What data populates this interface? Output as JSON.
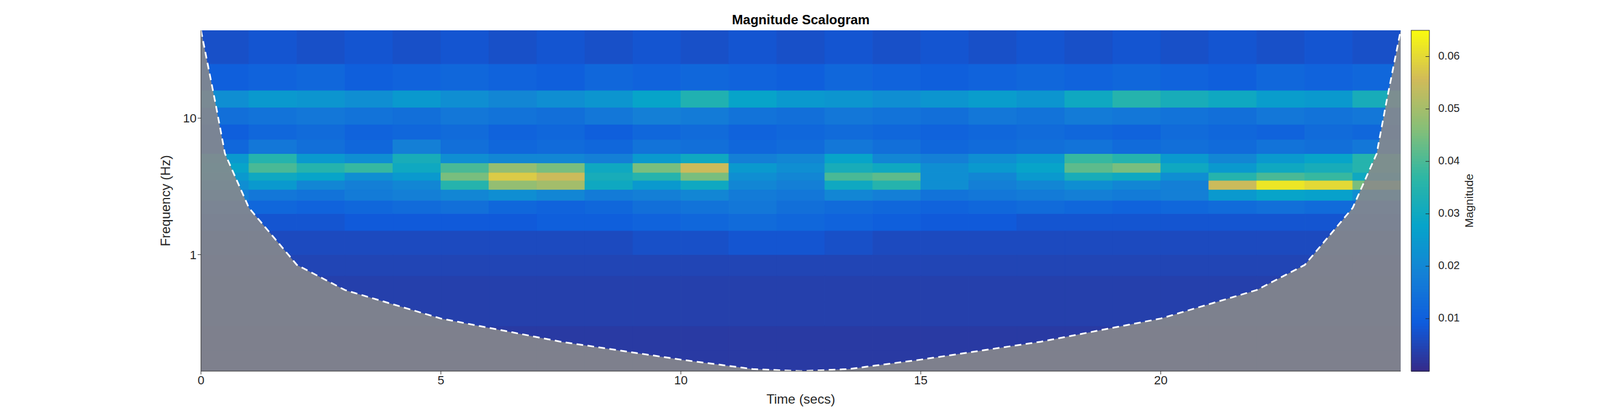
{
  "chart_data": {
    "type": "heatmap",
    "title": "Magnitude Scalogram",
    "x_label": "Time (secs)",
    "y_label": "Frequency (Hz)",
    "log": "y",
    "xlim": [
      0,
      25
    ],
    "xticks": [
      0,
      5,
      10,
      15,
      20
    ],
    "ylim": [
      0.14,
      44
    ],
    "yticks": [
      1,
      10
    ],
    "time_bins": [
      0,
      1,
      2,
      3,
      4,
      5,
      6,
      7,
      8,
      9,
      10,
      11,
      12,
      13,
      14,
      15,
      16,
      17,
      18,
      19,
      20,
      21,
      22,
      23,
      24,
      25
    ],
    "frequency_bins": [
      0.14,
      0.2,
      0.3,
      0.45,
      0.7,
      1,
      1.5,
      2,
      2.5,
      3,
      3.5,
      4,
      4.7,
      5.5,
      7,
      9,
      12,
      16,
      25,
      44
    ],
    "cells": [
      [
        0.003,
        0.003,
        0.003,
        0.003,
        0.003,
        0.003,
        0.003,
        0.003,
        0.003,
        0.003,
        0.003,
        0.003,
        0.003,
        0.003,
        0.003,
        0.003,
        0.003,
        0.003,
        0.003,
        0.003,
        0.003,
        0.003,
        0.003,
        0.003,
        0.003
      ],
      [
        0.003,
        0.003,
        0.003,
        0.003,
        0.003,
        0.003,
        0.003,
        0.003,
        0.003,
        0.003,
        0.003,
        0.003,
        0.003,
        0.003,
        0.003,
        0.003,
        0.003,
        0.003,
        0.003,
        0.003,
        0.003,
        0.003,
        0.003,
        0.003,
        0.003
      ],
      [
        0.004,
        0.004,
        0.004,
        0.004,
        0.004,
        0.004,
        0.004,
        0.004,
        0.004,
        0.004,
        0.004,
        0.004,
        0.004,
        0.004,
        0.004,
        0.004,
        0.004,
        0.004,
        0.004,
        0.004,
        0.004,
        0.004,
        0.004,
        0.004,
        0.004
      ],
      [
        0.004,
        0.004,
        0.004,
        0.004,
        0.004,
        0.004,
        0.004,
        0.004,
        0.004,
        0.004,
        0.004,
        0.004,
        0.004,
        0.004,
        0.004,
        0.004,
        0.004,
        0.004,
        0.004,
        0.004,
        0.004,
        0.004,
        0.004,
        0.004,
        0.004
      ],
      [
        0.005,
        0.005,
        0.005,
        0.005,
        0.005,
        0.005,
        0.005,
        0.005,
        0.005,
        0.005,
        0.005,
        0.005,
        0.005,
        0.005,
        0.005,
        0.005,
        0.005,
        0.005,
        0.005,
        0.005,
        0.005,
        0.005,
        0.005,
        0.005,
        0.005
      ],
      [
        0.006,
        0.006,
        0.006,
        0.006,
        0.006,
        0.006,
        0.006,
        0.006,
        0.006,
        0.007,
        0.007,
        0.008,
        0.008,
        0.007,
        0.006,
        0.006,
        0.006,
        0.006,
        0.006,
        0.006,
        0.006,
        0.006,
        0.006,
        0.006,
        0.006
      ],
      [
        0.008,
        0.008,
        0.008,
        0.009,
        0.009,
        0.009,
        0.009,
        0.01,
        0.01,
        0.011,
        0.012,
        0.013,
        0.012,
        0.011,
        0.01,
        0.009,
        0.009,
        0.008,
        0.008,
        0.008,
        0.008,
        0.008,
        0.008,
        0.008,
        0.008
      ],
      [
        0.012,
        0.012,
        0.011,
        0.012,
        0.013,
        0.014,
        0.012,
        0.011,
        0.012,
        0.014,
        0.015,
        0.016,
        0.014,
        0.013,
        0.012,
        0.011,
        0.012,
        0.013,
        0.012,
        0.011,
        0.012,
        0.013,
        0.014,
        0.013,
        0.012
      ],
      [
        0.018,
        0.016,
        0.015,
        0.017,
        0.018,
        0.02,
        0.022,
        0.02,
        0.017,
        0.018,
        0.02,
        0.017,
        0.016,
        0.02,
        0.018,
        0.015,
        0.016,
        0.017,
        0.018,
        0.017,
        0.018,
        0.025,
        0.028,
        0.027,
        0.022
      ],
      [
        0.022,
        0.025,
        0.02,
        0.018,
        0.02,
        0.035,
        0.048,
        0.05,
        0.03,
        0.025,
        0.03,
        0.02,
        0.018,
        0.03,
        0.035,
        0.022,
        0.018,
        0.02,
        0.022,
        0.02,
        0.018,
        0.055,
        0.062,
        0.06,
        0.045
      ],
      [
        0.025,
        0.03,
        0.028,
        0.022,
        0.025,
        0.045,
        0.058,
        0.055,
        0.032,
        0.035,
        0.045,
        0.022,
        0.02,
        0.04,
        0.042,
        0.022,
        0.02,
        0.025,
        0.032,
        0.03,
        0.022,
        0.035,
        0.04,
        0.038,
        0.03
      ],
      [
        0.028,
        0.04,
        0.035,
        0.038,
        0.03,
        0.04,
        0.048,
        0.045,
        0.03,
        0.045,
        0.055,
        0.025,
        0.022,
        0.032,
        0.03,
        0.022,
        0.025,
        0.028,
        0.042,
        0.045,
        0.03,
        0.025,
        0.03,
        0.032,
        0.035
      ],
      [
        0.025,
        0.035,
        0.025,
        0.022,
        0.032,
        0.022,
        0.02,
        0.02,
        0.018,
        0.025,
        0.03,
        0.018,
        0.02,
        0.028,
        0.02,
        0.018,
        0.022,
        0.025,
        0.038,
        0.035,
        0.025,
        0.02,
        0.025,
        0.028,
        0.035
      ],
      [
        0.012,
        0.016,
        0.014,
        0.012,
        0.018,
        0.014,
        0.012,
        0.013,
        0.012,
        0.015,
        0.014,
        0.012,
        0.013,
        0.016,
        0.014,
        0.012,
        0.013,
        0.014,
        0.015,
        0.013,
        0.014,
        0.013,
        0.015,
        0.014,
        0.016
      ],
      [
        0.01,
        0.012,
        0.013,
        0.011,
        0.012,
        0.013,
        0.011,
        0.012,
        0.01,
        0.012,
        0.013,
        0.011,
        0.012,
        0.013,
        0.012,
        0.011,
        0.012,
        0.013,
        0.012,
        0.011,
        0.013,
        0.012,
        0.011,
        0.013,
        0.012
      ],
      [
        0.014,
        0.015,
        0.016,
        0.015,
        0.014,
        0.016,
        0.015,
        0.014,
        0.016,
        0.018,
        0.017,
        0.015,
        0.014,
        0.016,
        0.015,
        0.014,
        0.016,
        0.015,
        0.017,
        0.016,
        0.015,
        0.014,
        0.016,
        0.015,
        0.016
      ],
      [
        0.022,
        0.025,
        0.024,
        0.022,
        0.025,
        0.022,
        0.02,
        0.022,
        0.024,
        0.028,
        0.034,
        0.028,
        0.025,
        0.024,
        0.022,
        0.024,
        0.026,
        0.024,
        0.03,
        0.035,
        0.032,
        0.03,
        0.026,
        0.025,
        0.032
      ],
      [
        0.01,
        0.011,
        0.012,
        0.01,
        0.011,
        0.012,
        0.011,
        0.01,
        0.012,
        0.011,
        0.012,
        0.011,
        0.01,
        0.012,
        0.011,
        0.01,
        0.011,
        0.012,
        0.011,
        0.012,
        0.011,
        0.01,
        0.012,
        0.011,
        0.012
      ],
      [
        0.007,
        0.008,
        0.007,
        0.008,
        0.007,
        0.008,
        0.007,
        0.008,
        0.007,
        0.008,
        0.007,
        0.008,
        0.007,
        0.008,
        0.007,
        0.008,
        0.007,
        0.008,
        0.007,
        0.008,
        0.007,
        0.008,
        0.007,
        0.008,
        0.007
      ]
    ],
    "colorbar": {
      "label": "Magnitude",
      "clim": [
        0,
        0.065
      ],
      "ticks": [
        0.01,
        0.02,
        0.03,
        0.04,
        0.05,
        0.06
      ]
    },
    "coi": {
      "x": [
        0,
        0.3,
        0.5,
        1,
        2,
        3,
        5,
        7.5,
        10,
        11.5,
        12.5,
        13.5,
        15,
        17.5,
        20,
        22,
        23,
        24,
        24.5,
        24.7,
        25
      ],
      "y": [
        44,
        13,
        5.5,
        2.2,
        0.84,
        0.55,
        0.34,
        0.23,
        0.17,
        0.145,
        0.14,
        0.145,
        0.17,
        0.23,
        0.34,
        0.55,
        0.84,
        2.2,
        5.5,
        13,
        44
      ]
    }
  }
}
